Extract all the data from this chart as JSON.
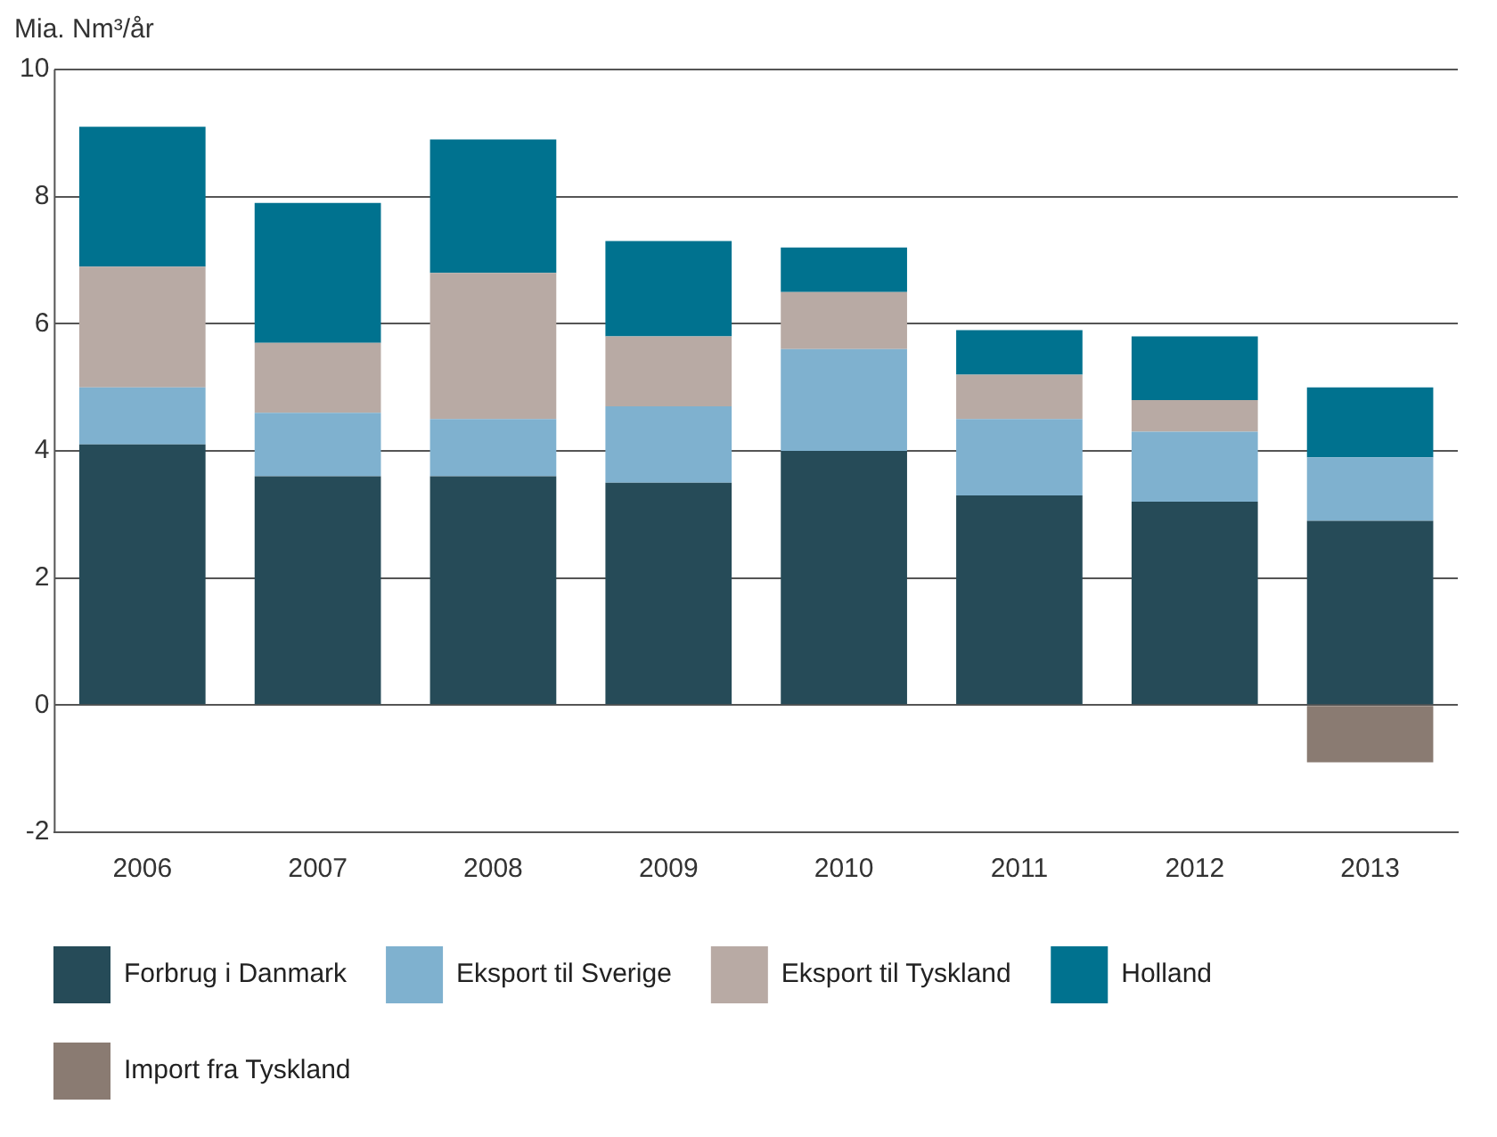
{
  "chart_data": {
    "type": "bar",
    "ylabel": "Mia. Nm³/år",
    "categories": [
      "2006",
      "2007",
      "2008",
      "2009",
      "2010",
      "2011",
      "2012",
      "2013"
    ],
    "series": [
      {
        "name": "Forbrug i Danmark",
        "color": "#264b58",
        "values": [
          4.1,
          3.6,
          3.6,
          3.5,
          4.0,
          3.3,
          3.2,
          2.9
        ]
      },
      {
        "name": "Eksport til Sverige",
        "color": "#7fb1cf",
        "values": [
          0.9,
          1.0,
          0.9,
          1.2,
          1.6,
          1.2,
          1.1,
          1.0
        ]
      },
      {
        "name": "Eksport til Tyskland",
        "color": "#b8aaa4",
        "values": [
          1.9,
          1.1,
          2.3,
          1.1,
          0.9,
          0.7,
          0.5,
          null
        ]
      },
      {
        "name": "Holland",
        "color": "#00728f",
        "values": [
          2.2,
          2.2,
          2.1,
          1.5,
          0.7,
          0.7,
          1.0,
          1.1
        ]
      },
      {
        "name": "Import fra Tyskland",
        "color": "#8a7b72",
        "values": [
          null,
          null,
          null,
          null,
          null,
          null,
          null,
          -0.9
        ]
      }
    ],
    "stacked": true,
    "ylim": [
      -2,
      10
    ],
    "yticks": [
      -2,
      0,
      2,
      4,
      6,
      8,
      10
    ],
    "grid": "y",
    "legend": "bottom"
  }
}
